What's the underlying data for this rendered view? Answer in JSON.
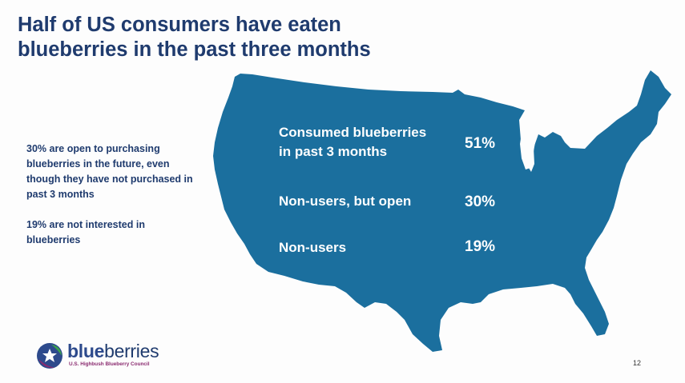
{
  "slide": {
    "title_line1": "Half of US consumers have eaten",
    "title_line2": "blueberries in the past three months",
    "side_notes": [
      "30% are open to purchasing blueberries in the future, even though they have not purchased in past 3 months",
      "19% are not interested in blueberries"
    ],
    "stats": [
      {
        "label_line1": "Consumed blueberries",
        "label_line2": "in past 3 months",
        "value": "51%"
      },
      {
        "label_line1": "Non-users, but open",
        "label_line2": "",
        "value": "30%"
      },
      {
        "label_line1": "Non-users",
        "label_line2": "",
        "value": "19%"
      }
    ],
    "logo": {
      "word_blue": "blue",
      "word_berries": "berries",
      "tagline": "U.S. Highbush Blueberry Council"
    },
    "page_number": "12"
  },
  "colors": {
    "map_fill": "#1b6f9e",
    "title": "#1f3b6e",
    "stat_text": "#ffffff"
  },
  "icons": [
    "us-map-shape",
    "blueberry-logo-icon"
  ]
}
